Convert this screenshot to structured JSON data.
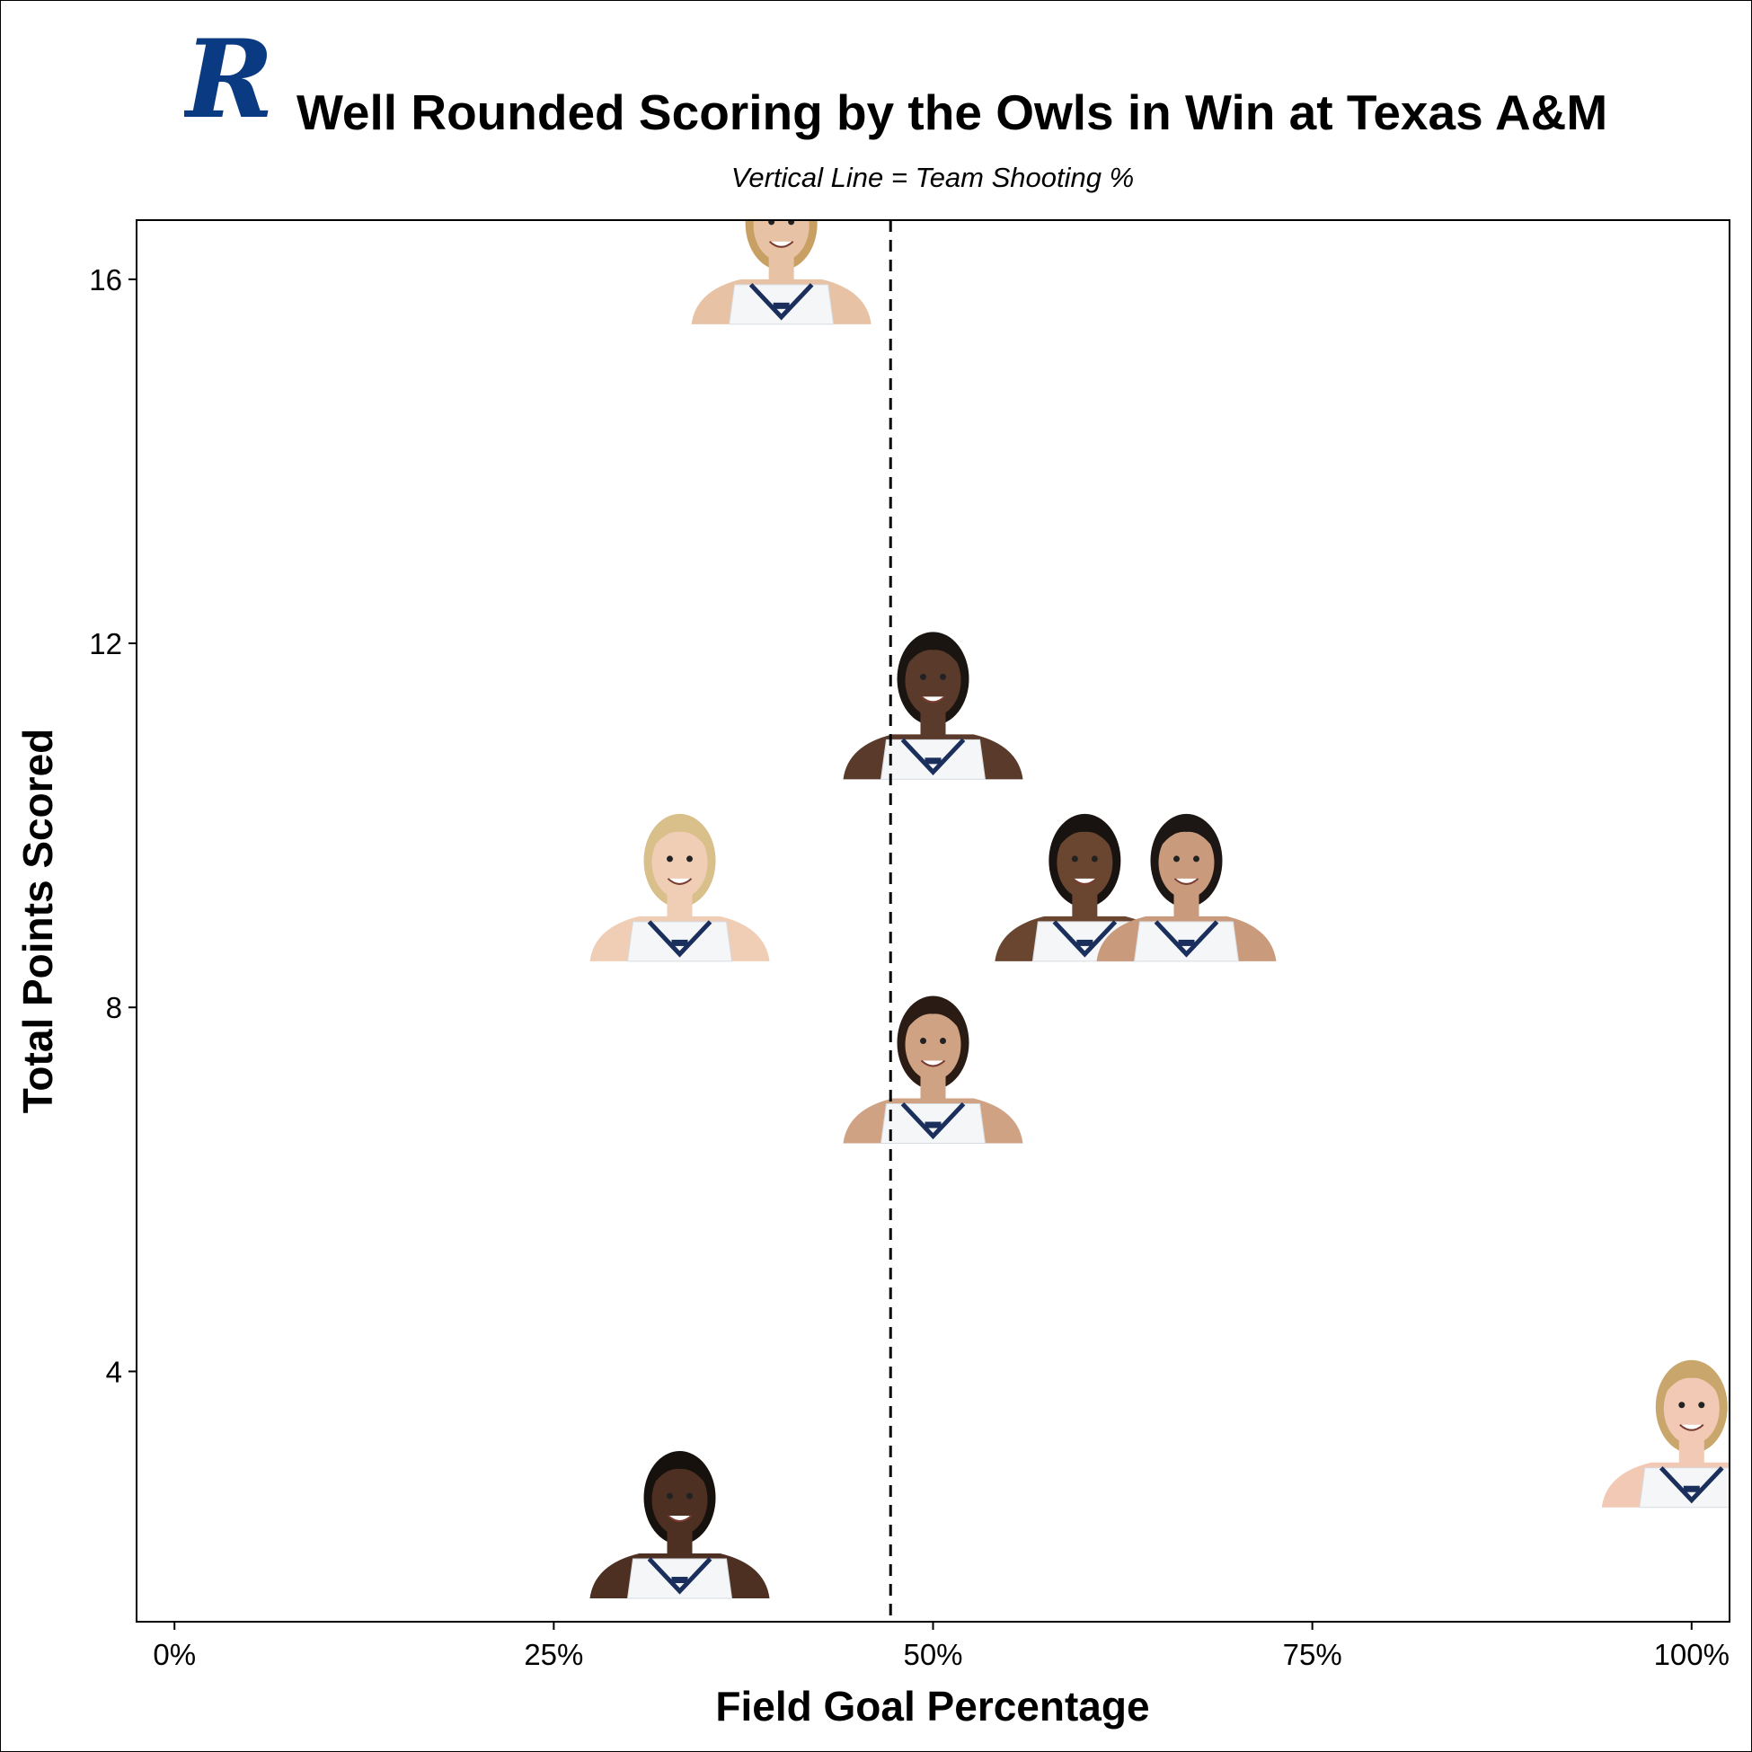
{
  "header": {
    "title": "Well Rounded Scoring by the Owls in Win at Texas A&M",
    "subtitle": "Vertical Line = Team Shooting %",
    "logo_letter": "R",
    "logo_icon": "rice-owls-r-logo-icon",
    "logo_color": "#0a3a82"
  },
  "chart_data": {
    "type": "scatter",
    "title": "Well Rounded Scoring by the Owls in Win at Texas A&M",
    "subtitle": "Vertical Line = Team Shooting %",
    "xlabel": "Field Goal Percentage",
    "ylabel": "Total Points Scored",
    "xlim": [
      -0.025,
      1.025
    ],
    "ylim": [
      1.25,
      16.65
    ],
    "x_ticks": [
      0,
      0.25,
      0.5,
      0.75,
      1.0
    ],
    "x_tick_labels": [
      "0%",
      "25%",
      "50%",
      "75%",
      "100%"
    ],
    "y_ticks": [
      4,
      8,
      12,
      16
    ],
    "y_tick_labels": [
      "4",
      "8",
      "12",
      "16"
    ],
    "reference_line": {
      "x": 0.472,
      "style": "dashed",
      "label": "Team Shooting %"
    },
    "grid": false,
    "marker": "player-headshot",
    "points": [
      {
        "x": 0.4,
        "y": 16,
        "hair": "#c9a064",
        "skin": "#e7c2a4"
      },
      {
        "x": 0.5,
        "y": 11,
        "hair": "#1b1512",
        "skin": "#5a3a2a"
      },
      {
        "x": 0.333,
        "y": 9,
        "hair": "#d9c08a",
        "skin": "#f0cdb5"
      },
      {
        "x": 0.6,
        "y": 9,
        "hair": "#181310",
        "skin": "#6a4631"
      },
      {
        "x": 0.667,
        "y": 9,
        "hair": "#1c1714",
        "skin": "#c99a7c"
      },
      {
        "x": 0.5,
        "y": 7,
        "hair": "#2a1c14",
        "skin": "#d0a284"
      },
      {
        "x": 1.0,
        "y": 3,
        "hair": "#c9a66b",
        "skin": "#f1c9b5"
      },
      {
        "x": 0.333,
        "y": 2,
        "hair": "#17110e",
        "skin": "#4d3022"
      }
    ]
  }
}
